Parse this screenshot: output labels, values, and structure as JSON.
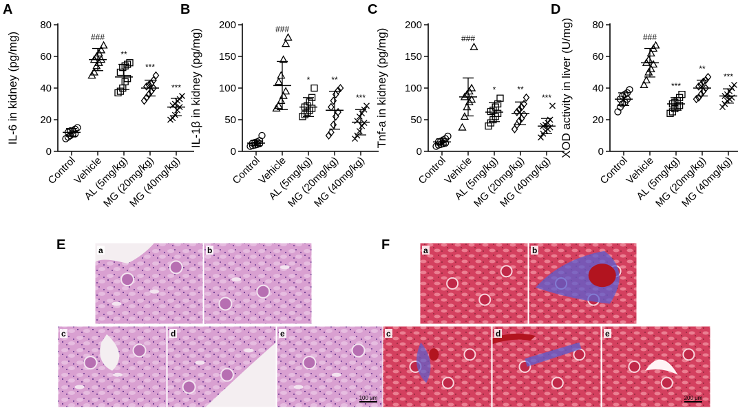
{
  "categories": [
    "Control",
    "Vehicle",
    "AL (5mg/kg)",
    "MG (20mg/kg)",
    "MG (40mg/kg)"
  ],
  "chart_data": [
    {
      "panel": "A",
      "type": "scatter",
      "ylabel": "IL-6 in kidney (pg/mg)",
      "ylim": [
        0,
        80
      ],
      "yticks": [
        "0",
        "20",
        "40",
        "60",
        "80"
      ],
      "groups": [
        {
          "marker": "circle",
          "mean": 12,
          "sd": 2.5,
          "sig": "",
          "points": [
            8,
            9,
            10,
            11,
            11,
            12,
            13,
            13,
            14,
            15
          ]
        },
        {
          "marker": "triangle",
          "mean": 58,
          "sd": 7,
          "sig": "###",
          "points": [
            48,
            50,
            54,
            56,
            58,
            58,
            60,
            62,
            64,
            67
          ]
        },
        {
          "marker": "square",
          "mean": 47,
          "sd": 8,
          "sig": "**",
          "points": [
            37,
            38,
            40,
            44,
            46,
            50,
            53,
            54,
            55,
            56
          ]
        },
        {
          "marker": "diamond",
          "mean": 40,
          "sd": 5,
          "sig": "***",
          "points": [
            32,
            34,
            36,
            38,
            40,
            41,
            42,
            43,
            45,
            48
          ]
        },
        {
          "marker": "x",
          "mean": 28,
          "sd": 5.5,
          "sig": "***",
          "points": [
            20,
            21,
            23,
            26,
            28,
            29,
            30,
            32,
            33,
            35
          ]
        }
      ]
    },
    {
      "panel": "B",
      "type": "scatter",
      "ylabel": "IL-1β in kidney  (pg/mg)",
      "ylim": [
        0,
        200
      ],
      "yticks": [
        "0",
        "50",
        "100",
        "150",
        "200"
      ],
      "groups": [
        {
          "marker": "circle",
          "mean": 13,
          "sd": 4,
          "sig": "",
          "points": [
            8,
            9,
            10,
            11,
            12,
            13,
            14,
            15,
            17,
            25
          ]
        },
        {
          "marker": "triangle",
          "mean": 104,
          "sd": 38,
          "sig": "###",
          "points": [
            68,
            72,
            80,
            88,
            95,
            110,
            120,
            145,
            170,
            180
          ]
        },
        {
          "marker": "square",
          "mean": 70,
          "sd": 15,
          "sig": "*",
          "points": [
            55,
            58,
            62,
            65,
            68,
            70,
            72,
            78,
            85,
            100
          ]
        },
        {
          "marker": "diamond",
          "mean": 65,
          "sd": 30,
          "sig": "**",
          "points": [
            25,
            30,
            42,
            55,
            62,
            70,
            80,
            90,
            96,
            100
          ]
        },
        {
          "marker": "x",
          "mean": 46,
          "sd": 20,
          "sig": "***",
          "points": [
            20,
            25,
            32,
            40,
            45,
            48,
            55,
            60,
            66,
            72
          ]
        }
      ]
    },
    {
      "panel": "C",
      "type": "scatter",
      "ylabel": "Tnf-a in kidney (pg/mg)",
      "ylim": [
        0,
        200
      ],
      "yticks": [
        "0",
        "50",
        "100",
        "150",
        "200"
      ],
      "groups": [
        {
          "marker": "circle",
          "mean": 15,
          "sd": 5,
          "sig": "",
          "points": [
            8,
            10,
            11,
            12,
            13,
            15,
            16,
            18,
            20,
            24
          ]
        },
        {
          "marker": "triangle",
          "mean": 86,
          "sd": 30,
          "sig": "###",
          "points": [
            38,
            55,
            70,
            78,
            82,
            86,
            90,
            95,
            100,
            165
          ]
        },
        {
          "marker": "square",
          "mean": 62,
          "sd": 15,
          "sig": "*",
          "points": [
            40,
            45,
            50,
            55,
            60,
            63,
            65,
            70,
            75,
            84
          ]
        },
        {
          "marker": "diamond",
          "mean": 60,
          "sd": 18,
          "sig": "**",
          "points": [
            35,
            42,
            48,
            52,
            58,
            62,
            66,
            70,
            75,
            85
          ]
        },
        {
          "marker": "x",
          "mean": 40,
          "sd": 12,
          "sig": "***",
          "points": [
            22,
            28,
            32,
            35,
            38,
            40,
            42,
            45,
            50,
            72
          ]
        }
      ]
    },
    {
      "panel": "D",
      "type": "scatter",
      "ylabel": "XOD activity in liver (U/mg)",
      "ylim": [
        0,
        80
      ],
      "yticks": [
        "0",
        "20",
        "40",
        "60",
        "80"
      ],
      "groups": [
        {
          "marker": "circle",
          "mean": 33,
          "sd": 4,
          "sig": "",
          "points": [
            25,
            28,
            30,
            31,
            33,
            33,
            35,
            36,
            37,
            39
          ]
        },
        {
          "marker": "triangle",
          "mean": 56,
          "sd": 9,
          "sig": "###",
          "points": [
            42,
            45,
            50,
            52,
            55,
            56,
            58,
            62,
            65,
            67
          ]
        },
        {
          "marker": "square",
          "mean": 30,
          "sd": 4,
          "sig": "***",
          "points": [
            24,
            25,
            27,
            28,
            29,
            30,
            31,
            32,
            34,
            36
          ]
        },
        {
          "marker": "diamond",
          "mean": 40,
          "sd": 5,
          "sig": "**",
          "points": [
            33,
            34,
            36,
            38,
            40,
            41,
            42,
            44,
            45,
            47
          ]
        },
        {
          "marker": "x",
          "mean": 35,
          "sd": 4.5,
          "sig": "***",
          "points": [
            28,
            30,
            32,
            33,
            34,
            35,
            36,
            38,
            40,
            42
          ]
        }
      ]
    }
  ],
  "histology": {
    "E": {
      "letter": "E",
      "scale": "100 μm",
      "stain_colors": {
        "background": "#d79ad0",
        "tissue": "#c77fc1",
        "nuclei": "#6e3c92",
        "lumen": "#f1e9ee"
      },
      "tiles": [
        "a",
        "b",
        "c",
        "d",
        "e"
      ]
    },
    "F": {
      "letter": "F",
      "scale": "200 μm",
      "stain_colors": {
        "background": "#d5405f",
        "tissue": "#c83355",
        "collagen": "#5b5fd0",
        "lumen": "#fff3f5",
        "blood": "#b2141f"
      },
      "tiles": [
        "a",
        "b",
        "c",
        "d",
        "e"
      ]
    }
  }
}
